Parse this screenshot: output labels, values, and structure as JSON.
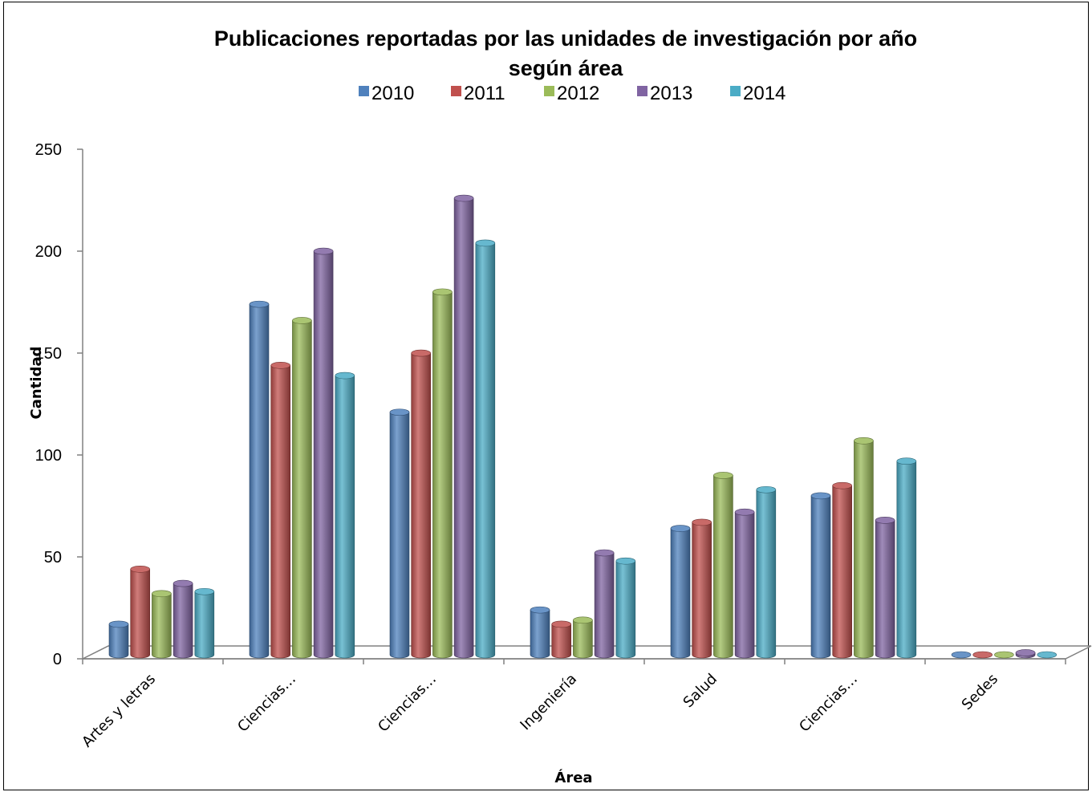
{
  "chart_data": {
    "type": "bar",
    "style": "3d-cylinder",
    "title": "Publicaciones reportadas por las unidades de investigación por año según área",
    "title_lines": [
      "Publicaciones reportadas por las unidades de investigación por año",
      "según área"
    ],
    "xlabel": "Área",
    "ylabel": "Cantidad",
    "ylim": [
      0,
      250
    ],
    "yticks": [
      0,
      50,
      100,
      150,
      200,
      250
    ],
    "legend_position": "top",
    "grid": false,
    "categories": [
      "Artes y letras",
      "Ciencias…",
      "Ciencias…",
      "Ingeniería",
      "Salud",
      "Ciencias…",
      "Sedes"
    ],
    "series": [
      {
        "name": "2010",
        "color": "#4F81BD",
        "values": [
          15,
          172,
          119,
          22,
          62,
          78,
          0
        ]
      },
      {
        "name": "2011",
        "color": "#C0504D",
        "values": [
          42,
          142,
          148,
          15,
          65,
          83,
          0
        ]
      },
      {
        "name": "2012",
        "color": "#9BBB59",
        "values": [
          30,
          164,
          178,
          17,
          88,
          105,
          0
        ]
      },
      {
        "name": "2013",
        "color": "#8064A2",
        "values": [
          35,
          198,
          224,
          50,
          70,
          66,
          1
        ]
      },
      {
        "name": "2014",
        "color": "#4BACC6",
        "values": [
          31,
          137,
          202,
          46,
          81,
          95,
          0
        ]
      }
    ]
  }
}
